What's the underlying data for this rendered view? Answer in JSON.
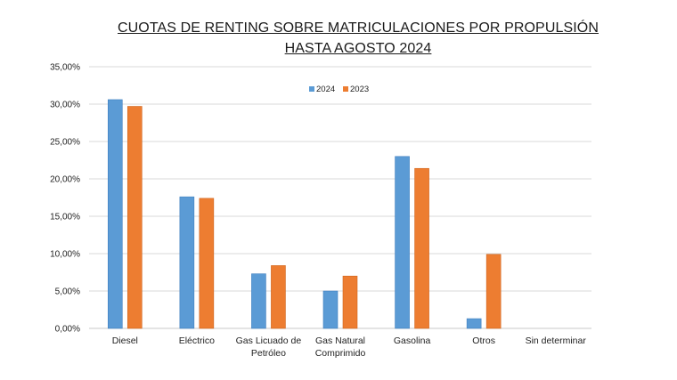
{
  "chart_data": {
    "type": "bar",
    "title_lines": [
      "CUOTAS DE RENTING SOBRE MATRICULACIONES POR PROPULSIÓN",
      "HASTA AGOSTO 2024"
    ],
    "categories": [
      [
        "Diesel"
      ],
      [
        "Eléctrico"
      ],
      [
        "Gas Licuado de",
        "Petróleo"
      ],
      [
        "Gas Natural",
        "Comprimido"
      ],
      [
        "Gasolina"
      ],
      [
        "Otros"
      ],
      [
        "Sin determinar"
      ]
    ],
    "series": [
      {
        "name": "2024",
        "color": "#5b9bd5",
        "values": [
          30.6,
          17.6,
          7.3,
          5.0,
          23.0,
          1.3,
          0.0
        ]
      },
      {
        "name": "2023",
        "color": "#ed7d31",
        "values": [
          29.7,
          17.4,
          8.4,
          7.0,
          21.4,
          9.9,
          0.0
        ]
      }
    ],
    "ylim": [
      0,
      35
    ],
    "yticks": [
      "0,00%",
      "5,00%",
      "10,00%",
      "15,00%",
      "20,00%",
      "25,00%",
      "30,00%",
      "35,00%"
    ],
    "grid": true,
    "legend_position": "top-center"
  }
}
